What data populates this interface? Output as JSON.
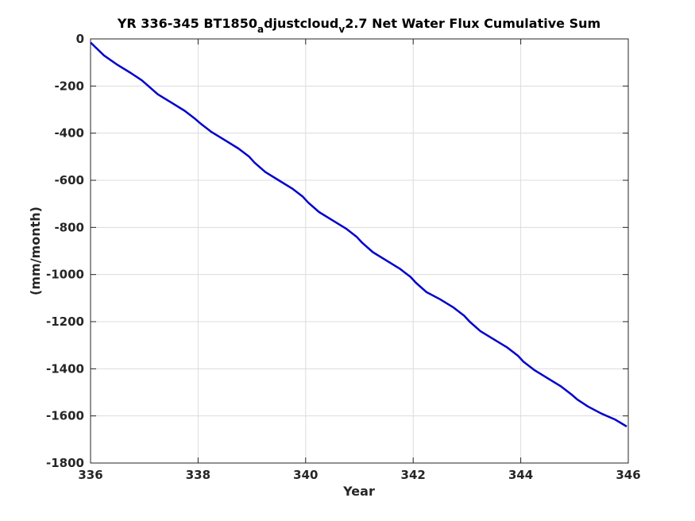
{
  "chart_data": {
    "type": "line",
    "title": {
      "part1": "YR 336-345 BT1850",
      "sub1": "a",
      "part2": "djustcloud",
      "sub2": "v",
      "part3": "2.7 Net Water Flux Cumulative Sum"
    },
    "xlabel": "Year",
    "ylabel": "(mm/month)",
    "xlim": [
      336,
      346
    ],
    "ylim": [
      -1800,
      0
    ],
    "xticks": [
      336,
      338,
      340,
      342,
      344,
      346
    ],
    "yticks": [
      0,
      -200,
      -400,
      -600,
      -800,
      -1000,
      -1200,
      -1400,
      -1600,
      -1800
    ],
    "grid": true,
    "colors": {
      "line": "#0000cd",
      "grid": "#dcdcdc",
      "axis": "#262626"
    },
    "series": [
      {
        "x": [
          336.0,
          336.25,
          336.5,
          336.75,
          336.95,
          337.05,
          337.25,
          337.5,
          337.75,
          337.95,
          338.05,
          338.25,
          338.5,
          338.75,
          338.95,
          339.05,
          339.25,
          339.5,
          339.75,
          339.95,
          340.05,
          340.25,
          340.5,
          340.75,
          340.95,
          341.05,
          341.25,
          341.5,
          341.75,
          341.95,
          342.05,
          342.25,
          342.5,
          342.75,
          342.95,
          343.05,
          343.25,
          343.5,
          343.75,
          343.95,
          344.05,
          344.25,
          344.5,
          344.75,
          344.95,
          345.05,
          345.25,
          345.5,
          345.75,
          345.97
        ],
        "y": [
          -15,
          -70,
          -110,
          -145,
          -175,
          -195,
          -235,
          -270,
          -305,
          -340,
          -360,
          -395,
          -430,
          -465,
          -500,
          -525,
          -565,
          -600,
          -635,
          -670,
          -695,
          -735,
          -770,
          -805,
          -840,
          -865,
          -905,
          -940,
          -975,
          -1010,
          -1035,
          -1075,
          -1105,
          -1140,
          -1175,
          -1200,
          -1240,
          -1275,
          -1310,
          -1345,
          -1370,
          -1405,
          -1440,
          -1475,
          -1510,
          -1530,
          -1560,
          -1590,
          -1615,
          -1645
        ]
      }
    ]
  }
}
